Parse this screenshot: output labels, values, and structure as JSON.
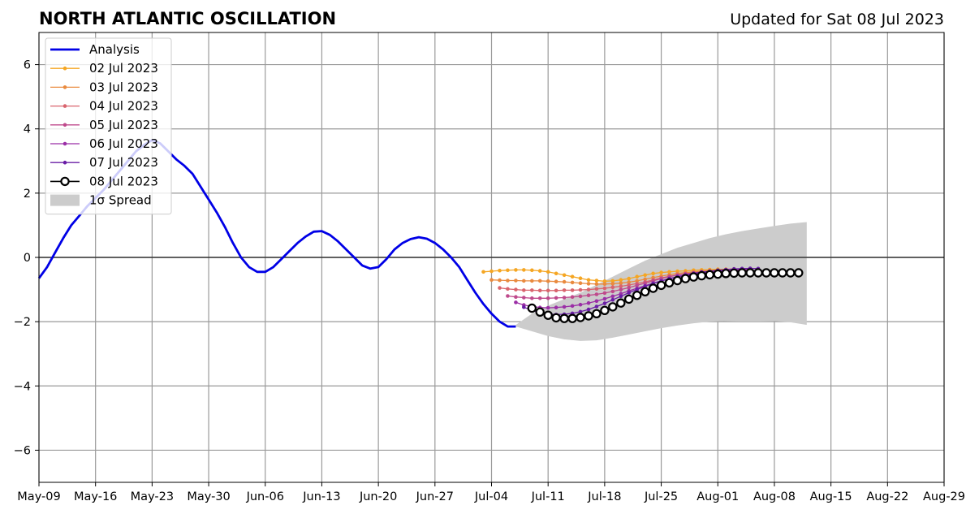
{
  "chart_data": {
    "type": "line",
    "title": "NORTH ATLANTIC OSCILLATION",
    "subtitle": "Updated for Sat 08 Jul 2023",
    "xlabel": "",
    "ylabel": "",
    "x_ticks": [
      "May-09",
      "May-16",
      "May-23",
      "May-30",
      "Jun-06",
      "Jun-13",
      "Jun-20",
      "Jun-27",
      "Jul-04",
      "Jul-11",
      "Jul-18",
      "Jul-25",
      "Aug-01",
      "Aug-08",
      "Aug-15",
      "Aug-22",
      "Aug-29"
    ],
    "y_ticks": [
      "−6",
      "−4",
      "−2",
      "0",
      "2",
      "4",
      "6"
    ],
    "xlim": [
      "2023-05-09",
      "2023-08-29"
    ],
    "ylim": [
      -7,
      7
    ],
    "grid": true,
    "legend_position": "top-left",
    "legend": [
      "Analysis",
      "02 Jul 2023",
      "03 Jul 2023",
      "04 Jul 2023",
      "05 Jul 2023",
      "06 Jul 2023",
      "07 Jul 2023",
      "08 Jul 2023",
      "1σ Spread"
    ],
    "analysis": {
      "name": "Analysis",
      "color": "#0000e6",
      "points": [
        [
          "2023-05-09",
          -0.65
        ],
        [
          "2023-05-10",
          -0.3
        ],
        [
          "2023-05-11",
          0.15
        ],
        [
          "2023-05-12",
          0.6
        ],
        [
          "2023-05-13",
          1.0
        ],
        [
          "2023-05-14",
          1.3
        ],
        [
          "2023-05-15",
          1.6
        ],
        [
          "2023-05-16",
          1.85
        ],
        [
          "2023-05-17",
          2.1
        ],
        [
          "2023-05-18",
          2.4
        ],
        [
          "2023-05-19",
          2.7
        ],
        [
          "2023-05-20",
          3.0
        ],
        [
          "2023-05-21",
          3.3
        ],
        [
          "2023-05-22",
          3.5
        ],
        [
          "2023-05-23",
          3.65
        ],
        [
          "2023-05-24",
          3.55
        ],
        [
          "2023-05-25",
          3.3
        ],
        [
          "2023-05-26",
          3.05
        ],
        [
          "2023-05-27",
          2.85
        ],
        [
          "2023-05-28",
          2.6
        ],
        [
          "2023-05-29",
          2.2
        ],
        [
          "2023-05-30",
          1.8
        ],
        [
          "2023-05-31",
          1.4
        ],
        [
          "2023-06-01",
          0.95
        ],
        [
          "2023-06-02",
          0.45
        ],
        [
          "2023-06-03",
          0.0
        ],
        [
          "2023-06-04",
          -0.3
        ],
        [
          "2023-06-05",
          -0.45
        ],
        [
          "2023-06-06",
          -0.45
        ],
        [
          "2023-06-07",
          -0.3
        ],
        [
          "2023-06-08",
          -0.05
        ],
        [
          "2023-06-09",
          0.2
        ],
        [
          "2023-06-10",
          0.45
        ],
        [
          "2023-06-11",
          0.65
        ],
        [
          "2023-06-12",
          0.8
        ],
        [
          "2023-06-13",
          0.82
        ],
        [
          "2023-06-14",
          0.7
        ],
        [
          "2023-06-15",
          0.5
        ],
        [
          "2023-06-16",
          0.25
        ],
        [
          "2023-06-17",
          0.0
        ],
        [
          "2023-06-18",
          -0.25
        ],
        [
          "2023-06-19",
          -0.35
        ],
        [
          "2023-06-20",
          -0.3
        ],
        [
          "2023-06-21",
          -0.05
        ],
        [
          "2023-06-22",
          0.25
        ],
        [
          "2023-06-23",
          0.45
        ],
        [
          "2023-06-24",
          0.57
        ],
        [
          "2023-06-25",
          0.63
        ],
        [
          "2023-06-26",
          0.58
        ],
        [
          "2023-06-27",
          0.45
        ],
        [
          "2023-06-28",
          0.25
        ],
        [
          "2023-06-29",
          0.0
        ],
        [
          "2023-06-30",
          -0.3
        ],
        [
          "2023-07-01",
          -0.7
        ],
        [
          "2023-07-02",
          -1.1
        ],
        [
          "2023-07-03",
          -1.45
        ],
        [
          "2023-07-04",
          -1.75
        ],
        [
          "2023-07-05",
          -2.0
        ],
        [
          "2023-07-06",
          -2.15
        ],
        [
          "2023-07-07",
          -2.15
        ]
      ]
    },
    "spread": {
      "name": "1σ Spread",
      "color": "#cccccc",
      "x": [
        "2023-07-07",
        "2023-07-09",
        "2023-07-11",
        "2023-07-13",
        "2023-07-15",
        "2023-07-17",
        "2023-07-19",
        "2023-07-21",
        "2023-07-23",
        "2023-07-25",
        "2023-07-27",
        "2023-07-29",
        "2023-07-31",
        "2023-08-02",
        "2023-08-04",
        "2023-08-06",
        "2023-08-08",
        "2023-08-10",
        "2023-08-12"
      ],
      "upper": [
        -2.1,
        -1.75,
        -1.5,
        -1.3,
        -1.1,
        -0.85,
        -0.6,
        -0.35,
        -0.1,
        0.1,
        0.3,
        0.45,
        0.6,
        0.72,
        0.82,
        0.9,
        0.98,
        1.05,
        1.1
      ],
      "lower": [
        -2.15,
        -2.3,
        -2.45,
        -2.55,
        -2.6,
        -2.58,
        -2.5,
        -2.4,
        -2.3,
        -2.2,
        -2.12,
        -2.05,
        -2.0,
        -1.98,
        -1.97,
        -1.97,
        -1.98,
        -2.02,
        -2.1
      ]
    },
    "series": [
      {
        "name": "02 Jul 2023",
        "color": "#f5a623",
        "start": "2023-07-03",
        "values": [
          -0.45,
          -0.43,
          -0.41,
          -0.4,
          -0.39,
          -0.39,
          -0.4,
          -0.42,
          -0.45,
          -0.5,
          -0.55,
          -0.6,
          -0.65,
          -0.7,
          -0.72,
          -0.74,
          -0.73,
          -0.7,
          -0.66,
          -0.6,
          -0.55,
          -0.5,
          -0.47,
          -0.45,
          -0.43,
          -0.42,
          -0.4,
          -0.39,
          -0.38,
          -0.37,
          -0.37,
          -0.36,
          -0.36,
          -0.35
        ]
      },
      {
        "name": "03 Jul 2023",
        "color": "#e98a3f",
        "start": "2023-07-04",
        "values": [
          -0.7,
          -0.71,
          -0.72,
          -0.72,
          -0.73,
          -0.73,
          -0.73,
          -0.74,
          -0.75,
          -0.76,
          -0.78,
          -0.8,
          -0.82,
          -0.83,
          -0.83,
          -0.82,
          -0.8,
          -0.77,
          -0.73,
          -0.68,
          -0.63,
          -0.58,
          -0.54,
          -0.5,
          -0.47,
          -0.45,
          -0.43,
          -0.41,
          -0.4,
          -0.39,
          -0.38,
          -0.38,
          -0.37
        ]
      },
      {
        "name": "04 Jul 2023",
        "color": "#d9646e",
        "start": "2023-07-05",
        "values": [
          -0.95,
          -0.98,
          -1.0,
          -1.02,
          -1.02,
          -1.03,
          -1.03,
          -1.03,
          -1.02,
          -1.02,
          -1.01,
          -1.0,
          -0.98,
          -0.96,
          -0.93,
          -0.9,
          -0.86,
          -0.81,
          -0.76,
          -0.7,
          -0.64,
          -0.59,
          -0.55,
          -0.51,
          -0.48,
          -0.46,
          -0.44,
          -0.42,
          -0.41,
          -0.4,
          -0.39,
          -0.39
        ]
      },
      {
        "name": "05 Jul 2023",
        "color": "#bf4a8c",
        "start": "2023-07-06",
        "values": [
          -1.2,
          -1.23,
          -1.25,
          -1.27,
          -1.27,
          -1.27,
          -1.26,
          -1.25,
          -1.23,
          -1.21,
          -1.18,
          -1.15,
          -1.11,
          -1.06,
          -1.0,
          -0.94,
          -0.87,
          -0.8,
          -0.73,
          -0.66,
          -0.6,
          -0.55,
          -0.51,
          -0.48,
          -0.45,
          -0.43,
          -0.41,
          -0.4,
          -0.39,
          -0.38,
          -0.38
        ]
      },
      {
        "name": "06 Jul 2023",
        "color": "#9b2fa6",
        "start": "2023-07-07",
        "values": [
          -1.4,
          -1.48,
          -1.53,
          -1.56,
          -1.57,
          -1.56,
          -1.54,
          -1.51,
          -1.47,
          -1.42,
          -1.36,
          -1.29,
          -1.21,
          -1.13,
          -1.04,
          -0.96,
          -0.88,
          -0.8,
          -0.73,
          -0.67,
          -0.61,
          -0.56,
          -0.52,
          -0.48,
          -0.45,
          -0.43,
          -0.41,
          -0.39,
          -0.38,
          -0.37
        ]
      },
      {
        "name": "07 Jul 2023",
        "color": "#6a1ea6",
        "start": "2023-07-08",
        "values": [
          -1.55,
          -1.65,
          -1.72,
          -1.76,
          -1.78,
          -1.77,
          -1.74,
          -1.69,
          -1.62,
          -1.53,
          -1.43,
          -1.32,
          -1.21,
          -1.1,
          -1.0,
          -0.9,
          -0.81,
          -0.73,
          -0.66,
          -0.6,
          -0.55,
          -0.5,
          -0.46,
          -0.43,
          -0.4,
          -0.38,
          -0.36,
          -0.35,
          -0.34,
          -0.35
        ]
      },
      {
        "name": "08 Jul 2023",
        "color": "#000000",
        "start": "2023-07-09",
        "values": [
          -1.58,
          -1.7,
          -1.8,
          -1.88,
          -1.9,
          -1.9,
          -1.87,
          -1.82,
          -1.75,
          -1.65,
          -1.54,
          -1.42,
          -1.3,
          -1.18,
          -1.07,
          -0.96,
          -0.87,
          -0.79,
          -0.72,
          -0.66,
          -0.61,
          -0.57,
          -0.54,
          -0.52,
          -0.5,
          -0.49,
          -0.48,
          -0.48,
          -0.48,
          -0.48,
          -0.48,
          -0.48,
          -0.48,
          -0.48
        ]
      }
    ]
  }
}
